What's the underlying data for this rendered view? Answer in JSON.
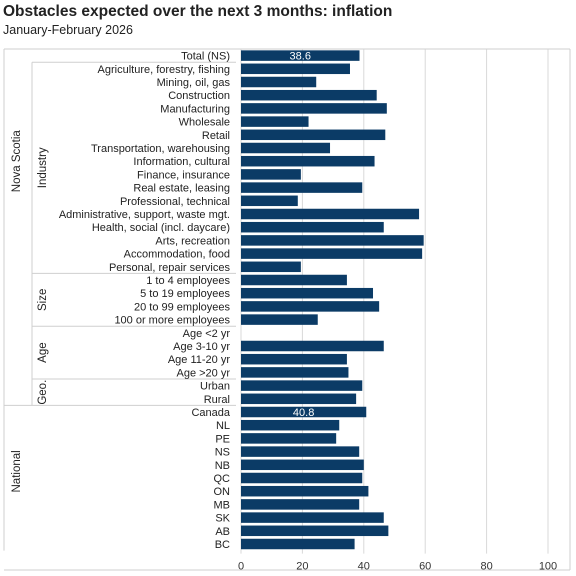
{
  "chart_data": {
    "type": "bar",
    "orientation": "horizontal",
    "title": "Obstacles expected over the next 3 months: inflation",
    "subtitle": "January-February  2026",
    "xlim": [
      0,
      100
    ],
    "xticks": [
      0,
      20,
      40,
      60,
      80,
      100
    ],
    "grid": true,
    "bar_color": "#0b3b66",
    "groups": [
      {
        "label": "Nova Scotia",
        "start": 0,
        "end": 17
      },
      {
        "label": "National",
        "start": 27,
        "end": 37
      }
    ],
    "subgroups": [
      {
        "label": "Industry",
        "start": 1,
        "end": 17
      },
      {
        "label": "Size",
        "start": 17,
        "end": 21
      },
      {
        "label": "Age",
        "start": 21,
        "end": 25
      },
      {
        "label": "Geo.",
        "start": 25,
        "end": 27
      }
    ],
    "data_labels": [
      {
        "index": 0,
        "text": "38.6"
      },
      {
        "index": 27,
        "text": "40.8"
      }
    ],
    "categories": [
      "Total (NS)",
      "Agriculture, forestry, fishing",
      "Mining, oil, gas",
      "Construction",
      "Manufacturing",
      "Wholesale",
      "Retail",
      "Transportation, warehousing",
      "Information, cultural",
      "Finance, insurance",
      "Real estate, leasing",
      "Professional, technical",
      "Administrative, support, waste mgt.",
      "Health, social (incl. daycare)",
      "Arts, recreation",
      "Accommodation, food",
      "Personal, repair services",
      "1 to 4 employees",
      "5 to 19 employees",
      "20 to 99 employees",
      "100 or more employees",
      "Age <2 yr",
      "Age 3-10 yr",
      "Age 11-20 yr",
      "Age >20 yr",
      "Urban",
      "Rural",
      "Canada",
      "NL",
      "PE",
      "NS",
      "NB",
      "QC",
      "ON",
      "MB",
      "SK",
      "AB",
      "BC"
    ],
    "values": [
      38.6,
      35.5,
      24.5,
      44.2,
      47.5,
      22.0,
      47.0,
      29.0,
      43.5,
      19.5,
      39.5,
      18.5,
      58.0,
      46.5,
      59.5,
      59.0,
      19.5,
      34.5,
      43.0,
      45.0,
      25.0,
      null,
      46.5,
      34.5,
      35.0,
      39.5,
      37.5,
      40.8,
      32.0,
      31.0,
      38.5,
      40.0,
      39.5,
      41.5,
      38.5,
      46.5,
      48.0,
      37.0
    ]
  }
}
